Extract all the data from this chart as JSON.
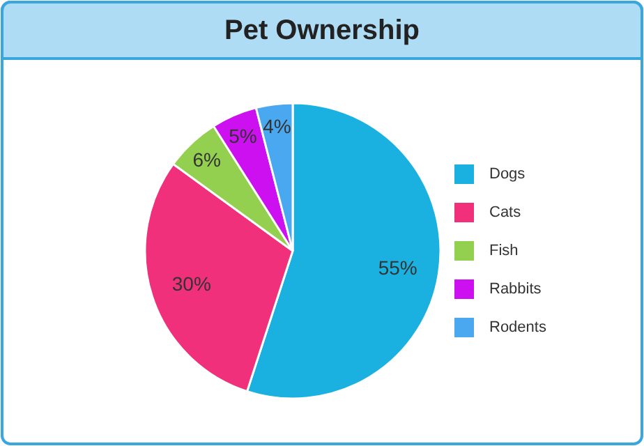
{
  "chart_data": {
    "type": "pie",
    "title": "Pet Ownership",
    "categories": [
      "Dogs",
      "Cats",
      "Fish",
      "Rabbits",
      "Rodents"
    ],
    "values": [
      55,
      30,
      6,
      5,
      4
    ],
    "value_labels": [
      "55%",
      "30%",
      "6%",
      "5%",
      "4%"
    ],
    "colors": [
      "#1ab0e0",
      "#f0307a",
      "#94d050",
      "#cc10f0",
      "#4aa8f0"
    ],
    "legend": "right"
  }
}
